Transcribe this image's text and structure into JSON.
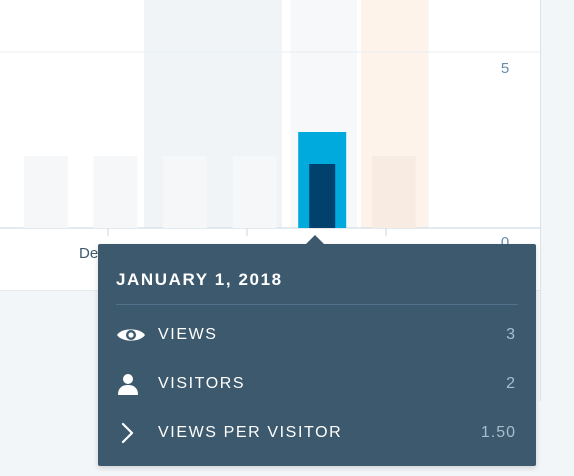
{
  "chart": {
    "y_tick_top": "5",
    "y_tick_bottom": "0",
    "x_tick_partial": "De"
  },
  "chart_data": {
    "type": "bar",
    "series": [
      {
        "values": [
          null,
          null,
          null,
          null,
          3,
          null
        ]
      },
      {
        "values": [
          null,
          null,
          null,
          null,
          2,
          null
        ]
      }
    ],
    "ylim": [
      0,
      5
    ],
    "highlight_index": 4,
    "today_index": 5
  },
  "tooltip": {
    "date": "JANUARY 1, 2018",
    "rows": [
      {
        "icon": "eye-icon",
        "label": "VIEWS",
        "value": "3"
      },
      {
        "icon": "person-icon",
        "label": "VISITORS",
        "value": "2"
      },
      {
        "icon": "chevron-right-icon",
        "label": "VIEWS PER VISITOR",
        "value": "1.50"
      }
    ]
  },
  "colors": {
    "views_bar": "#00aadc",
    "visitors_bar": "#00426d",
    "tooltip_bg": "#3d596d",
    "highlight_column": "#f6f8fa",
    "today_column": "#fdf3ea",
    "hover_column": "#f0f4f7"
  }
}
